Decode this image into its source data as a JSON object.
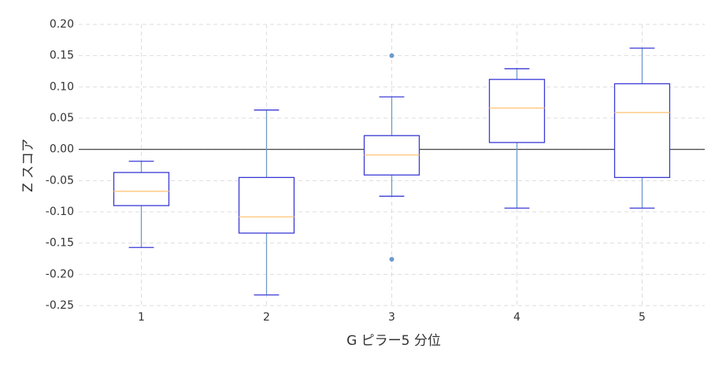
{
  "chart_data": {
    "type": "box",
    "x_label": "G ピラー5 分位",
    "y_label": "Z スコア",
    "categories": [
      "1",
      "2",
      "3",
      "4",
      "5"
    ],
    "boxes": [
      {
        "whislo": -0.157,
        "q1": -0.09,
        "med": -0.067,
        "q3": -0.037,
        "whishi": -0.019,
        "fliers": []
      },
      {
        "whislo": -0.233,
        "q1": -0.134,
        "med": -0.108,
        "q3": -0.045,
        "whishi": 0.063,
        "fliers": []
      },
      {
        "whislo": -0.075,
        "q1": -0.041,
        "med": -0.009,
        "q3": 0.022,
        "whishi": 0.084,
        "fliers": [
          0.15,
          -0.176
        ]
      },
      {
        "whislo": -0.094,
        "q1": 0.011,
        "med": 0.066,
        "q3": 0.112,
        "whishi": 0.129,
        "fliers": []
      },
      {
        "whislo": -0.094,
        "q1": -0.045,
        "med": 0.059,
        "q3": 0.105,
        "whishi": 0.162,
        "fliers": []
      }
    ],
    "box_color": "#3a3ad6",
    "whisker_color": "#6d9acb",
    "median_color": "#ffcc88",
    "flier_color": "#6d9acb",
    "ylim": [
      -0.25,
      0.2
    ],
    "yticks": [
      {
        "value": -0.25,
        "label": "-0.25"
      },
      {
        "value": -0.2,
        "label": "-0.20"
      },
      {
        "value": -0.15,
        "label": "-0.15"
      },
      {
        "value": -0.1,
        "label": "-0.10"
      },
      {
        "value": -0.05,
        "label": "-0.05"
      },
      {
        "value": 0,
        "label": "0.00"
      },
      {
        "value": 0.05,
        "label": "0.05"
      },
      {
        "value": 0.1,
        "label": "0.10"
      },
      {
        "value": 0.15,
        "label": "0.15"
      },
      {
        "value": 0.2,
        "label": "0.20"
      }
    ],
    "grid": true,
    "zero_line": true
  }
}
